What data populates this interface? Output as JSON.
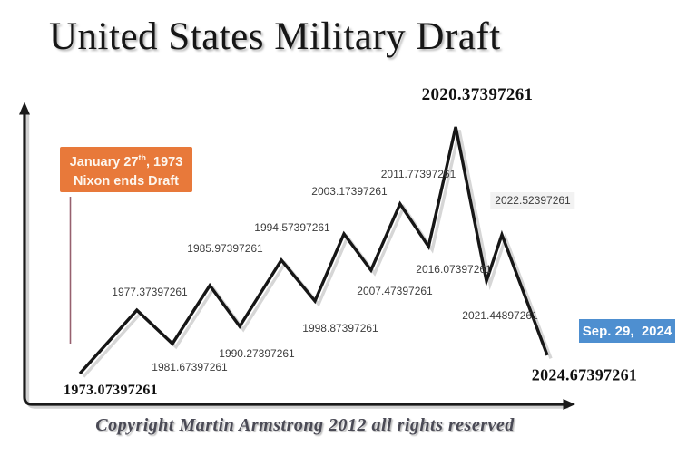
{
  "title": "United States Military Draft",
  "copyright": "Copyright Martin Armstrong 2012 all rights reserved",
  "callout": {
    "line1_prefix": "January 27",
    "line1_sup": "th",
    "line1_suffix": ", 1973",
    "line2": "Nixon ends Draft",
    "bg": "#E8793A",
    "text_color": "#FDF6EE"
  },
  "date_badge": {
    "text": "Sep. 29,  2024",
    "bg": "#4E8FD0",
    "text_color": "#FFFFFF"
  },
  "colors": {
    "line": "#161616",
    "line_shadow": "#d6d6d6",
    "axis": "#1a1a1a",
    "axis_shadow": "#d2d2d2",
    "callout_connector": "#96606E",
    "label_text": "#3d3d3d"
  },
  "chart_data": {
    "type": "line",
    "title": "United States Military Draft",
    "x_range_years": [
      1973.07397261,
      2024.67397261
    ],
    "x_axis": {
      "label": "",
      "tick_labels_visible": false
    },
    "y_axis": {
      "label": "",
      "tick_labels_visible": false,
      "note": "schematic height, no numeric scale shown"
    },
    "grid": false,
    "legend": false,
    "points": [
      {
        "year": 1973.07397261,
        "label": "1973.07397261",
        "kind": "trough",
        "x_frac": 0,
        "level": 0,
        "major": true,
        "highlighted": false
      },
      {
        "year": 1977.37397261,
        "label": "1977.37397261",
        "kind": "peak",
        "x_frac": 12.2,
        "level": 25.7,
        "major": false,
        "highlighted": false
      },
      {
        "year": 1981.67397261,
        "label": "1981.67397261",
        "kind": "trough",
        "x_frac": 19.8,
        "level": 12.1,
        "major": false,
        "highlighted": false
      },
      {
        "year": 1985.97397261,
        "label": "1985.97397261",
        "kind": "peak",
        "x_frac": 27.8,
        "level": 35.7,
        "major": false,
        "highlighted": false
      },
      {
        "year": 1990.27397261,
        "label": "1990.27397261",
        "kind": "trough",
        "x_frac": 34.2,
        "level": 19.1,
        "major": false,
        "highlighted": false
      },
      {
        "year": 1994.57397261,
        "label": "1994.57397261",
        "kind": "peak",
        "x_frac": 43.1,
        "level": 46.0,
        "major": false,
        "highlighted": false
      },
      {
        "year": 1998.87397261,
        "label": "1998.87397261",
        "kind": "trough",
        "x_frac": 50.3,
        "level": 29.4,
        "major": false,
        "highlighted": false
      },
      {
        "year": 2003.17397261,
        "label": "2003.17397261",
        "kind": "peak",
        "x_frac": 56.5,
        "level": 56.6,
        "major": false,
        "highlighted": false
      },
      {
        "year": 2007.47397261,
        "label": "2007.47397261",
        "kind": "trough",
        "x_frac": 62.3,
        "level": 41.9,
        "major": false,
        "highlighted": false
      },
      {
        "year": 2011.77397261,
        "label": "2011.77397261",
        "kind": "peak",
        "x_frac": 68.5,
        "level": 68.8,
        "major": false,
        "highlighted": false
      },
      {
        "year": 2016.07397261,
        "label": "2016.07397261",
        "kind": "trough",
        "x_frac": 74.6,
        "level": 51.5,
        "major": false,
        "highlighted": false
      },
      {
        "year": 2020.37397261,
        "label": "2020.37397261",
        "kind": "peak",
        "x_frac": 80.4,
        "level": 100,
        "major": true,
        "highlighted": false
      },
      {
        "year": 2021.44897261,
        "label": "2021.44897261",
        "kind": "trough",
        "x_frac": 87.0,
        "level": 37.5,
        "major": false,
        "highlighted": false
      },
      {
        "year": 2022.52397261,
        "label": "2022.52397261",
        "kind": "peak",
        "x_frac": 90.3,
        "level": 56.3,
        "major": false,
        "highlighted": true
      },
      {
        "year": 2024.67397261,
        "label": "2024.67397261",
        "kind": "trough",
        "x_frac": 100,
        "level": 7.4,
        "major": true,
        "highlighted": false
      }
    ]
  }
}
